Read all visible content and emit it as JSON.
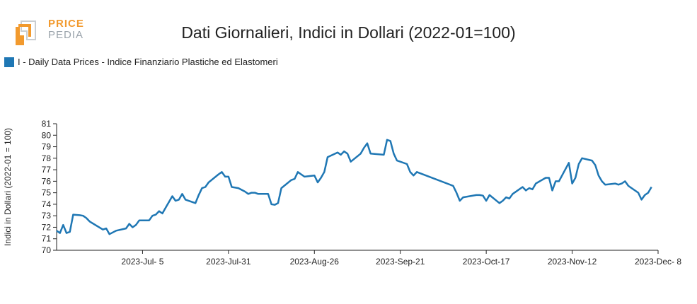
{
  "logo": {
    "line1": "PRICE",
    "line2": "PEDIA"
  },
  "chart_data": {
    "type": "line",
    "title": "Dati Giornalieri, Indici in Dollari (2022-01=100)",
    "ylabel": "Indici in Dollari (2022-01 = 100)",
    "xlabel": "",
    "ylim": [
      70,
      81
    ],
    "xlim": [
      "2023-06-09",
      "2023-12-08"
    ],
    "x_ticks": [
      "2023-07-05",
      "2023-07-31",
      "2023-08-26",
      "2023-09-21",
      "2023-10-17",
      "2023-11-12",
      "2023-12-08"
    ],
    "x_tick_labels": [
      "2023-Jul- 5",
      "2023-Jul-31",
      "2023-Aug-26",
      "2023-Sep-21",
      "2023-Oct-17",
      "2023-Nov-12",
      "2023-Dec- 8"
    ],
    "y_ticks": [
      70,
      71,
      72,
      73,
      74,
      75,
      76,
      77,
      78,
      79,
      80,
      81
    ],
    "legend_position": "top-left",
    "series": [
      {
        "name": "I - Daily Data Prices - Indice Finanziario Plastiche ed Elastomeri",
        "color": "#1f77b4",
        "points": [
          [
            "2023-06-09",
            71.7
          ],
          [
            "2023-06-10",
            71.5
          ],
          [
            "2023-06-11",
            72.2
          ],
          [
            "2023-06-12",
            71.5
          ],
          [
            "2023-06-13",
            71.6
          ],
          [
            "2023-06-14",
            73.1
          ],
          [
            "2023-06-16",
            73.05
          ],
          [
            "2023-06-17",
            73.0
          ],
          [
            "2023-06-18",
            72.8
          ],
          [
            "2023-06-19",
            72.5
          ],
          [
            "2023-06-23",
            71.8
          ],
          [
            "2023-06-24",
            71.9
          ],
          [
            "2023-06-25",
            71.4
          ],
          [
            "2023-06-27",
            71.7
          ],
          [
            "2023-06-30",
            71.9
          ],
          [
            "2023-07-01",
            72.3
          ],
          [
            "2023-07-02",
            72.0
          ],
          [
            "2023-07-03",
            72.2
          ],
          [
            "2023-07-04",
            72.6
          ],
          [
            "2023-07-07",
            72.6
          ],
          [
            "2023-07-08",
            73.0
          ],
          [
            "2023-07-09",
            73.1
          ],
          [
            "2023-07-10",
            73.4
          ],
          [
            "2023-07-11",
            73.2
          ],
          [
            "2023-07-12",
            73.7
          ],
          [
            "2023-07-14",
            74.7
          ],
          [
            "2023-07-15",
            74.3
          ],
          [
            "2023-07-16",
            74.4
          ],
          [
            "2023-07-17",
            74.9
          ],
          [
            "2023-07-18",
            74.4
          ],
          [
            "2023-07-21",
            74.1
          ],
          [
            "2023-07-22",
            74.8
          ],
          [
            "2023-07-23",
            75.4
          ],
          [
            "2023-07-24",
            75.5
          ],
          [
            "2023-07-25",
            75.9
          ],
          [
            "2023-07-28",
            76.6
          ],
          [
            "2023-07-29",
            76.8
          ],
          [
            "2023-07-30",
            76.4
          ],
          [
            "2023-07-31",
            76.4
          ],
          [
            "2023-08-01",
            75.5
          ],
          [
            "2023-08-03",
            75.4
          ],
          [
            "2023-08-05",
            75.1
          ],
          [
            "2023-08-06",
            74.9
          ],
          [
            "2023-08-07",
            75.0
          ],
          [
            "2023-08-08",
            75.0
          ],
          [
            "2023-08-09",
            74.9
          ],
          [
            "2023-08-12",
            74.9
          ],
          [
            "2023-08-13",
            74.0
          ],
          [
            "2023-08-14",
            73.95
          ],
          [
            "2023-08-15",
            74.1
          ],
          [
            "2023-08-16",
            75.4
          ],
          [
            "2023-08-19",
            76.1
          ],
          [
            "2023-08-20",
            76.2
          ],
          [
            "2023-08-21",
            76.8
          ],
          [
            "2023-08-22",
            76.6
          ],
          [
            "2023-08-23",
            76.4
          ],
          [
            "2023-08-26",
            76.5
          ],
          [
            "2023-08-27",
            75.9
          ],
          [
            "2023-08-28",
            76.3
          ],
          [
            "2023-08-29",
            76.8
          ],
          [
            "2023-08-30",
            78.1
          ],
          [
            "2023-09-02",
            78.5
          ],
          [
            "2023-09-03",
            78.3
          ],
          [
            "2023-09-04",
            78.6
          ],
          [
            "2023-09-05",
            78.4
          ],
          [
            "2023-09-06",
            77.7
          ],
          [
            "2023-09-09",
            78.4
          ],
          [
            "2023-09-10",
            78.9
          ],
          [
            "2023-09-11",
            79.3
          ],
          [
            "2023-09-12",
            78.4
          ],
          [
            "2023-09-16",
            78.3
          ],
          [
            "2023-09-17",
            79.6
          ],
          [
            "2023-09-18",
            79.5
          ],
          [
            "2023-09-19",
            78.4
          ],
          [
            "2023-09-20",
            77.8
          ],
          [
            "2023-09-23",
            77.5
          ],
          [
            "2023-09-24",
            76.8
          ],
          [
            "2023-09-25",
            76.5
          ],
          [
            "2023-09-26",
            76.8
          ],
          [
            "2023-10-07",
            75.6
          ],
          [
            "2023-10-08",
            75.0
          ],
          [
            "2023-10-09",
            74.3
          ],
          [
            "2023-10-10",
            74.6
          ],
          [
            "2023-10-14",
            74.8
          ],
          [
            "2023-10-15",
            74.8
          ],
          [
            "2023-10-16",
            74.75
          ],
          [
            "2023-10-17",
            74.3
          ],
          [
            "2023-10-18",
            74.8
          ],
          [
            "2023-10-21",
            74.1
          ],
          [
            "2023-10-22",
            74.3
          ],
          [
            "2023-10-23",
            74.6
          ],
          [
            "2023-10-24",
            74.5
          ],
          [
            "2023-10-25",
            74.9
          ],
          [
            "2023-10-28",
            75.5
          ],
          [
            "2023-10-29",
            75.2
          ],
          [
            "2023-10-30",
            75.4
          ],
          [
            "2023-10-31",
            75.3
          ],
          [
            "2023-11-01",
            75.8
          ],
          [
            "2023-11-04",
            76.3
          ],
          [
            "2023-11-05",
            76.3
          ],
          [
            "2023-11-06",
            75.2
          ],
          [
            "2023-11-07",
            76.0
          ],
          [
            "2023-11-08",
            76.0
          ],
          [
            "2023-11-11",
            77.6
          ],
          [
            "2023-11-12",
            75.8
          ],
          [
            "2023-11-13",
            76.3
          ],
          [
            "2023-11-14",
            77.5
          ],
          [
            "2023-11-15",
            78.0
          ],
          [
            "2023-11-18",
            77.8
          ],
          [
            "2023-11-19",
            77.4
          ],
          [
            "2023-11-20",
            76.5
          ],
          [
            "2023-11-21",
            76.0
          ],
          [
            "2023-11-22",
            75.7
          ],
          [
            "2023-11-25",
            75.8
          ],
          [
            "2023-11-26",
            75.7
          ],
          [
            "2023-11-27",
            75.8
          ],
          [
            "2023-11-28",
            76.0
          ],
          [
            "2023-11-29",
            75.6
          ],
          [
            "2023-12-02",
            75.0
          ],
          [
            "2023-12-03",
            74.4
          ],
          [
            "2023-12-04",
            74.8
          ],
          [
            "2023-12-05",
            75.0
          ],
          [
            "2023-12-06",
            75.5
          ]
        ]
      }
    ]
  }
}
